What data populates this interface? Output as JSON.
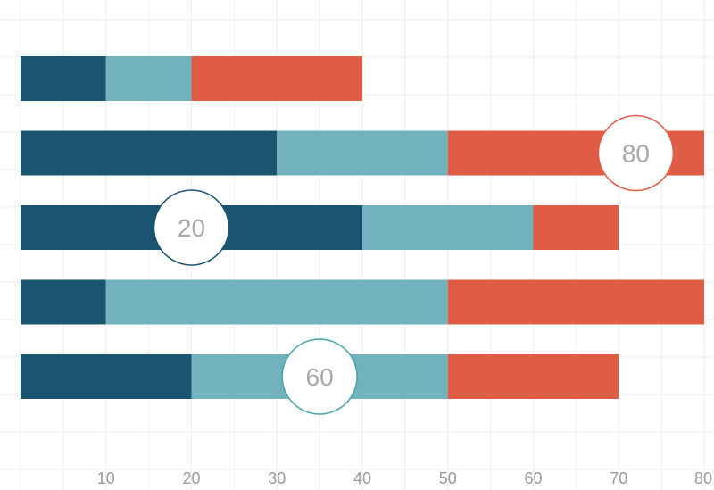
{
  "chart_data": {
    "type": "bar",
    "orientation": "horizontal",
    "stacked": true,
    "categories": [
      "",
      "",
      "",
      "",
      ""
    ],
    "series": [
      {
        "values": [
          10,
          30,
          40,
          10,
          20
        ]
      },
      {
        "values": [
          10,
          20,
          20,
          40,
          30
        ]
      },
      {
        "values": [
          20,
          30,
          10,
          30,
          20
        ]
      }
    ],
    "xlim": [
      0,
      80
    ],
    "x_ticks": [
      10,
      20,
      30,
      40,
      50,
      60,
      70,
      80
    ],
    "grid": true,
    "legend": "none",
    "annotations": [
      {
        "text": "80",
        "bar_index": 1,
        "x": 72,
        "border_color": "#e05c44"
      },
      {
        "text": "20",
        "bar_index": 2,
        "x": 20,
        "border_color": "#1b5470"
      },
      {
        "text": "60",
        "bar_index": 4,
        "x": 35,
        "border_color": "#4aa3ab"
      }
    ],
    "colors": [
      "#1b5470",
      "#72b2bf",
      "#e05c44"
    ]
  }
}
